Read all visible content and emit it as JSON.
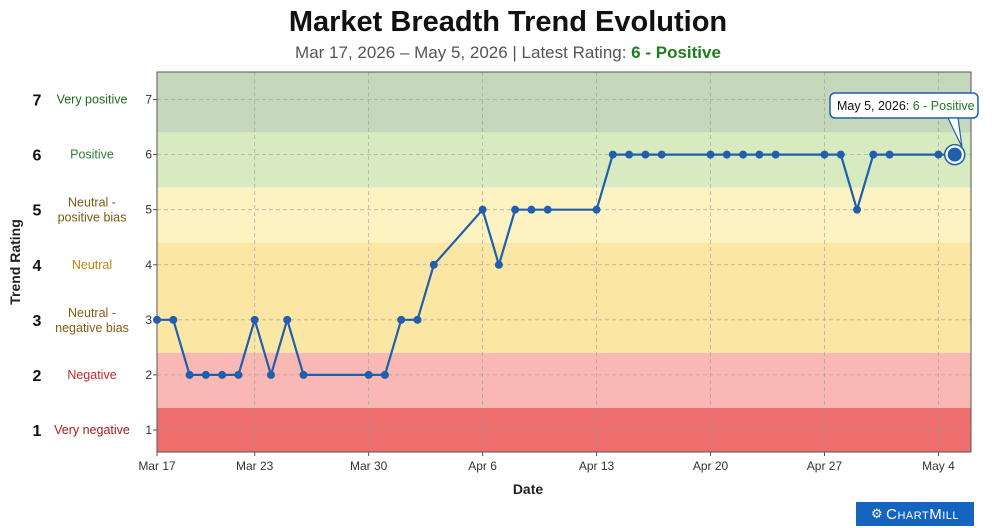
{
  "title": "Market Breadth Trend Evolution",
  "subtitle": {
    "range": "Mar 17, 2026 – May 5, 2026",
    "separator": " | Latest Rating: ",
    "rating": "6 - Positive"
  },
  "tooltip": {
    "date": "May 5, 2026: ",
    "value": "6 - Positive"
  },
  "logo": {
    "text": "ChartMill",
    "icon": "gears-icon"
  },
  "chart_data": {
    "type": "line",
    "xlabel": "Date",
    "ylabel": "Trend Rating",
    "ylim": [
      0.6,
      7.5
    ],
    "xlim": [
      "2026-03-17",
      "2026-05-06"
    ],
    "x_ticks": [
      "Mar 17",
      "Mar 23",
      "Mar 30",
      "Apr 6",
      "Apr 13",
      "Apr 20",
      "Apr 27",
      "May 4"
    ],
    "y_ticks": [
      1,
      2,
      3,
      4,
      5,
      6,
      7
    ],
    "grid": true,
    "line_color": "#1f5fad",
    "rating_labels": [
      {
        "value": 7,
        "label": "Very positive",
        "color": "#1e6b1e"
      },
      {
        "value": 6,
        "label": "Positive",
        "color": "#2e7d32"
      },
      {
        "value": 5,
        "label": "Neutral - positive bias",
        "color": "#7a5a12"
      },
      {
        "value": 4,
        "label": "Neutral",
        "color": "#b8860b"
      },
      {
        "value": 3,
        "label": "Neutral - negative bias",
        "color": "#8a5a12"
      },
      {
        "value": 2,
        "label": "Negative",
        "color": "#c62828"
      },
      {
        "value": 1,
        "label": "Very negative",
        "color": "#a51d1d"
      }
    ],
    "bands": [
      {
        "from": 6.4,
        "to": 7.5,
        "color": "#c6d8bb"
      },
      {
        "from": 5.4,
        "to": 6.4,
        "color": "#d8eac0"
      },
      {
        "from": 4.4,
        "to": 5.4,
        "color": "#fcf2c2"
      },
      {
        "from": 2.4,
        "to": 4.4,
        "color": "#fce6a4"
      },
      {
        "from": 1.4,
        "to": 2.4,
        "color": "#f9b8b3"
      },
      {
        "from": 0.6,
        "to": 1.4,
        "color": "#ef6e6e"
      }
    ],
    "points": [
      {
        "x": "2026-03-17",
        "y": 3
      },
      {
        "x": "2026-03-18",
        "y": 3
      },
      {
        "x": "2026-03-19",
        "y": 2
      },
      {
        "x": "2026-03-20",
        "y": 2
      },
      {
        "x": "2026-03-21",
        "y": 2
      },
      {
        "x": "2026-03-22",
        "y": 2
      },
      {
        "x": "2026-03-23",
        "y": 3
      },
      {
        "x": "2026-03-24",
        "y": 2
      },
      {
        "x": "2026-03-25",
        "y": 3
      },
      {
        "x": "2026-03-26",
        "y": 2
      },
      {
        "x": "2026-03-30",
        "y": 2
      },
      {
        "x": "2026-03-31",
        "y": 2
      },
      {
        "x": "2026-04-01",
        "y": 3
      },
      {
        "x": "2026-04-02",
        "y": 3
      },
      {
        "x": "2026-04-03",
        "y": 4
      },
      {
        "x": "2026-04-06",
        "y": 5
      },
      {
        "x": "2026-04-07",
        "y": 4
      },
      {
        "x": "2026-04-08",
        "y": 5
      },
      {
        "x": "2026-04-09",
        "y": 5
      },
      {
        "x": "2026-04-10",
        "y": 5
      },
      {
        "x": "2026-04-13",
        "y": 5
      },
      {
        "x": "2026-04-14",
        "y": 6
      },
      {
        "x": "2026-04-15",
        "y": 6
      },
      {
        "x": "2026-04-16",
        "y": 6
      },
      {
        "x": "2026-04-17",
        "y": 6
      },
      {
        "x": "2026-04-20",
        "y": 6
      },
      {
        "x": "2026-04-21",
        "y": 6
      },
      {
        "x": "2026-04-22",
        "y": 6
      },
      {
        "x": "2026-04-23",
        "y": 6
      },
      {
        "x": "2026-04-24",
        "y": 6
      },
      {
        "x": "2026-04-27",
        "y": 6
      },
      {
        "x": "2026-04-28",
        "y": 6
      },
      {
        "x": "2026-04-29",
        "y": 5
      },
      {
        "x": "2026-04-30",
        "y": 6
      },
      {
        "x": "2026-05-01",
        "y": 6
      },
      {
        "x": "2026-05-04",
        "y": 6
      },
      {
        "x": "2026-05-05",
        "y": 6
      }
    ]
  }
}
